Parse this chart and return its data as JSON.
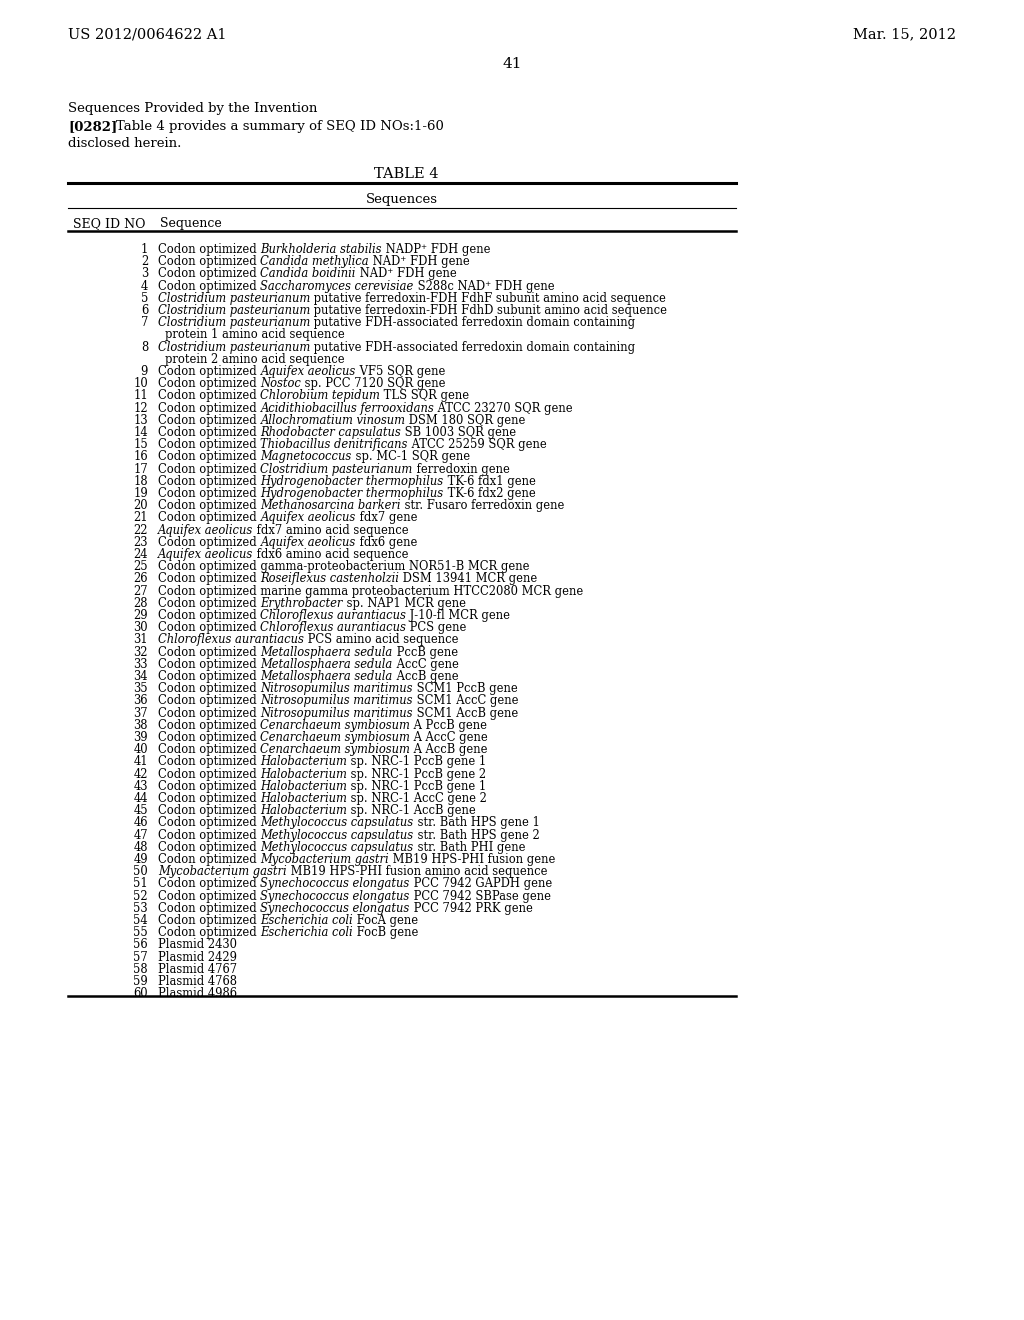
{
  "header_left": "US 2012/0064622 A1",
  "header_right": "Mar. 15, 2012",
  "page_number": "41",
  "section_title": "Sequences Provided by the Invention",
  "background_color": "#ffffff",
  "text_color": "#000000",
  "rows": [
    {
      "num": 1,
      "pre": "Codon optimized ",
      "italic": "Burkholderia stabilis",
      "post": " NADP⁺ FDH gene"
    },
    {
      "num": 2,
      "pre": "Codon optimized ",
      "italic": "Candida methylica",
      "post": " NAD⁺ FDH gene"
    },
    {
      "num": 3,
      "pre": "Codon optimized ",
      "italic": "Candida boidinii",
      "post": " NAD⁺ FDH gene"
    },
    {
      "num": 4,
      "pre": "Codon optimized ",
      "italic": "Saccharomyces cerevisiae",
      "post": " S288c NAD⁺ FDH gene"
    },
    {
      "num": 5,
      "pre": "",
      "italic": "Clostridium pasteurianum",
      "post": " putative ferredoxin-FDH FdhF subunit amino acid sequence"
    },
    {
      "num": 6,
      "pre": "",
      "italic": "Clostridium pasteurianum",
      "post": " putative ferredoxin-FDH FdhD subunit amino acid sequence"
    },
    {
      "num": 7,
      "pre": "",
      "italic": "Clostridium pasteurianum",
      "post": " putative FDH-associated ferredoxin domain containing",
      "cont": "protein 1 amino acid sequence"
    },
    {
      "num": 8,
      "pre": "",
      "italic": "Clostridium pasteurianum",
      "post": " putative FDH-associated ferredoxin domain containing",
      "cont": "protein 2 amino acid sequence"
    },
    {
      "num": 9,
      "pre": "Codon optimized ",
      "italic": "Aquifex aeolicus",
      "post": " VF5 SQR gene"
    },
    {
      "num": 10,
      "pre": "Codon optimized ",
      "italic": "Nostoc",
      "post": " sp. PCC 7120 SQR gene"
    },
    {
      "num": 11,
      "pre": "Codon optimized ",
      "italic": "Chlorobium tepidum",
      "post": " TLS SQR gene"
    },
    {
      "num": 12,
      "pre": "Codon optimized ",
      "italic": "Acidithiobacillus ferrooxidans",
      "post": " ATCC 23270 SQR gene"
    },
    {
      "num": 13,
      "pre": "Codon optimized ",
      "italic": "Allochromatium vinosum",
      "post": " DSM 180 SQR gene"
    },
    {
      "num": 14,
      "pre": "Codon optimized ",
      "italic": "Rhodobacter capsulatus",
      "post": " SB 1003 SQR gene"
    },
    {
      "num": 15,
      "pre": "Codon optimized ",
      "italic": "Thiobacillus denitrificans",
      "post": " ATCC 25259 SQR gene"
    },
    {
      "num": 16,
      "pre": "Codon optimized ",
      "italic": "Magnetococcus",
      "post": " sp. MC-1 SQR gene"
    },
    {
      "num": 17,
      "pre": "Codon optimized ",
      "italic": "Clostridium pasteurianum",
      "post": " ferredoxin gene"
    },
    {
      "num": 18,
      "pre": "Codon optimized ",
      "italic": "Hydrogenobacter thermophilus",
      "post": " TK-6 fdx1 gene"
    },
    {
      "num": 19,
      "pre": "Codon optimized ",
      "italic": "Hydrogenobacter thermophilus",
      "post": " TK-6 fdx2 gene"
    },
    {
      "num": 20,
      "pre": "Codon optimized ",
      "italic": "Methanosarcina barkeri",
      "post": " str. Fusaro ferredoxin gene"
    },
    {
      "num": 21,
      "pre": "Codon optimized ",
      "italic": "Aquifex aeolicus",
      "post": " fdx7 gene"
    },
    {
      "num": 22,
      "pre": "",
      "italic": "Aquifex aeolicus",
      "post": " fdx7 amino acid sequence"
    },
    {
      "num": 23,
      "pre": "Codon optimized ",
      "italic": "Aquifex aeolicus",
      "post": " fdx6 gene"
    },
    {
      "num": 24,
      "pre": "",
      "italic": "Aquifex aeolicus",
      "post": " fdx6 amino acid sequence"
    },
    {
      "num": 25,
      "pre": "Codon optimized gamma-proteobacterium NOR51-B MCR gene",
      "italic": "",
      "post": ""
    },
    {
      "num": 26,
      "pre": "Codon optimized ",
      "italic": "Roseiflexus castenholzii",
      "post": " DSM 13941 MCR gene"
    },
    {
      "num": 27,
      "pre": "Codon optimized marine gamma proteobacterium HTCC2080 MCR gene",
      "italic": "",
      "post": ""
    },
    {
      "num": 28,
      "pre": "Codon optimized ",
      "italic": "Erythrobacter",
      "post": " sp. NAP1 MCR gene"
    },
    {
      "num": 29,
      "pre": "Codon optimized ",
      "italic": "Chloroflexus aurantiacus",
      "post": " J-10-fl MCR gene"
    },
    {
      "num": 30,
      "pre": "Codon optimized ",
      "italic": "Chloroflexus aurantiacus",
      "post": " PCS gene"
    },
    {
      "num": 31,
      "pre": "",
      "italic": "Chloroflexus aurantiacus",
      "post": " PCS amino acid sequence"
    },
    {
      "num": 32,
      "pre": "Codon optimized ",
      "italic": "Metallosphaera sedula",
      "post": " PccB gene"
    },
    {
      "num": 33,
      "pre": "Codon optimized ",
      "italic": "Metallosphaera sedula",
      "post": " AccC gene"
    },
    {
      "num": 34,
      "pre": "Codon optimized ",
      "italic": "Metallosphaera sedula",
      "post": " AccB gene"
    },
    {
      "num": 35,
      "pre": "Codon optimized ",
      "italic": "Nitrosopumilus maritimus",
      "post": " SCM1 PccB gene"
    },
    {
      "num": 36,
      "pre": "Codon optimized ",
      "italic": "Nitrosopumilus maritimus",
      "post": " SCM1 AccC gene"
    },
    {
      "num": 37,
      "pre": "Codon optimized ",
      "italic": "Nitrosopumilus maritimus",
      "post": " SCM1 AccB gene"
    },
    {
      "num": 38,
      "pre": "Codon optimized ",
      "italic": "Cenarchaeum symbiosum",
      "post": " A PccB gene"
    },
    {
      "num": 39,
      "pre": "Codon optimized ",
      "italic": "Cenarchaeum symbiosum",
      "post": " A AccC gene"
    },
    {
      "num": 40,
      "pre": "Codon optimized ",
      "italic": "Cenarchaeum symbiosum",
      "post": " A AccB gene"
    },
    {
      "num": 41,
      "pre": "Codon optimized ",
      "italic": "Halobacterium",
      "post": " sp. NRC-1 PccB gene 1"
    },
    {
      "num": 42,
      "pre": "Codon optimized ",
      "italic": "Halobacterium",
      "post": " sp. NRC-1 PccB gene 2"
    },
    {
      "num": 43,
      "pre": "Codon optimized ",
      "italic": "Halobacterium",
      "post": " sp. NRC-1 PccB gene 1"
    },
    {
      "num": 44,
      "pre": "Codon optimized ",
      "italic": "Halobacterium",
      "post": " sp. NRC-1 AccC gene 2"
    },
    {
      "num": 45,
      "pre": "Codon optimized ",
      "italic": "Halobacterium",
      "post": " sp. NRC-1 AccB gene"
    },
    {
      "num": 46,
      "pre": "Codon optimized ",
      "italic": "Methylococcus capsulatus",
      "post": " str. Bath HPS gene 1"
    },
    {
      "num": 47,
      "pre": "Codon optimized ",
      "italic": "Methylococcus capsulatus",
      "post": " str. Bath HPS gene 2"
    },
    {
      "num": 48,
      "pre": "Codon optimized ",
      "italic": "Methylococcus capsulatus",
      "post": " str. Bath PHI gene"
    },
    {
      "num": 49,
      "pre": "Codon optimized ",
      "italic": "Mycobacterium gastri",
      "post": " MB19 HPS-PHI fusion gene"
    },
    {
      "num": 50,
      "pre": "",
      "italic": "Mycobacterium gastri",
      "post": " MB19 HPS-PHI fusion amino acid sequence"
    },
    {
      "num": 51,
      "pre": "Codon optimized ",
      "italic": "Synechococcus elongatus",
      "post": " PCC 7942 GAPDH gene"
    },
    {
      "num": 52,
      "pre": "Codon optimized ",
      "italic": "Synechococcus elongatus",
      "post": " PCC 7942 SBPase gene"
    },
    {
      "num": 53,
      "pre": "Codon optimized ",
      "italic": "Synechococcus elongatus",
      "post": " PCC 7942 PRK gene"
    },
    {
      "num": 54,
      "pre": "Codon optimized ",
      "italic": "Escherichia coli",
      "post": " FocA gene"
    },
    {
      "num": 55,
      "pre": "Codon optimized ",
      "italic": "Escherichia coli",
      "post": " FocB gene"
    },
    {
      "num": 56,
      "pre": "Plasmid 2430",
      "italic": "",
      "post": ""
    },
    {
      "num": 57,
      "pre": "Plasmid 2429",
      "italic": "",
      "post": ""
    },
    {
      "num": 58,
      "pre": "Plasmid 4767",
      "italic": "",
      "post": ""
    },
    {
      "num": 59,
      "pre": "Plasmid 4768",
      "italic": "",
      "post": ""
    },
    {
      "num": 60,
      "pre": "Plasmid 4986",
      "italic": "",
      "post": ""
    }
  ]
}
